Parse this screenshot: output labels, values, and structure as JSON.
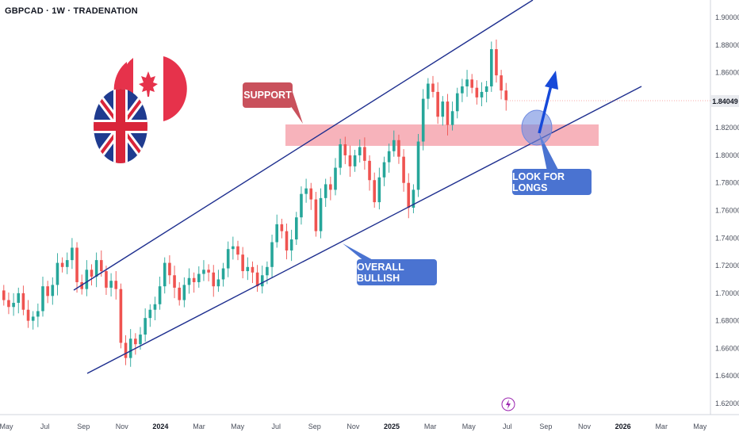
{
  "header": {
    "title": "GBPCAD · 1W · TRADENATION"
  },
  "annotations": {
    "support": "SUPPORT",
    "look_for_longs": "LOOK FOR LONGS",
    "overall_bullish": "OVERALL BULLISH"
  },
  "price_axis": {
    "ticks": [
      "1.90000",
      "1.88000",
      "1.86000",
      "1.84049",
      "1.82000",
      "1.80000",
      "1.78000",
      "1.76000",
      "1.74000",
      "1.72000",
      "1.70000",
      "1.68000",
      "1.66000",
      "1.64000",
      "1.62000"
    ],
    "current_price": "1.84049"
  },
  "time_axis": {
    "ticks": [
      "May",
      "Jul",
      "Sep",
      "Nov",
      "2024",
      "Mar",
      "May",
      "Jul",
      "Sep",
      "Nov",
      "2025",
      "Mar",
      "May",
      "Jul",
      "Sep",
      "Nov",
      "2026",
      "Mar",
      "May"
    ]
  },
  "colors": {
    "up": "#26a69a",
    "down": "#ef5350",
    "channel": "#1e2f8f",
    "support_zone": "#f28b96",
    "support_label": "#c9515c",
    "callout_blue": "#4a73d1",
    "arrow_blue": "#1649d9"
  },
  "icons": [
    "canada-flag-icon",
    "uk-flag-icon",
    "lightning-icon"
  ],
  "chart_data": {
    "type": "candlestick",
    "symbol": "GBPCAD",
    "interval": "1W",
    "x_range": [
      "2023-04",
      "2026-05"
    ],
    "ylim": [
      1.62,
      1.9
    ],
    "grid": false,
    "candles_close": [
      1.695,
      1.69,
      1.693,
      1.7,
      1.688,
      1.68,
      1.683,
      1.687,
      1.705,
      1.698,
      1.706,
      1.722,
      1.719,
      1.724,
      1.733,
      1.708,
      1.703,
      1.717,
      1.712,
      1.724,
      1.716,
      1.704,
      1.709,
      1.703,
      1.664,
      1.653,
      1.667,
      1.663,
      1.67,
      1.682,
      1.688,
      1.692,
      1.705,
      1.722,
      1.713,
      1.704,
      1.695,
      1.706,
      1.711,
      1.708,
      1.714,
      1.717,
      1.715,
      1.705,
      1.71,
      1.718,
      1.732,
      1.734,
      1.728,
      1.716,
      1.719,
      1.715,
      1.705,
      1.713,
      1.719,
      1.737,
      1.75,
      1.745,
      1.731,
      1.739,
      1.755,
      1.772,
      1.776,
      1.768,
      1.745,
      1.769,
      1.779,
      1.775,
      1.791,
      1.808,
      1.8,
      1.792,
      1.8,
      1.806,
      1.796,
      1.782,
      1.766,
      1.784,
      1.795,
      1.803,
      1.811,
      1.799,
      1.78,
      1.762,
      1.775,
      1.81,
      1.841,
      1.852,
      1.846,
      1.828,
      1.839,
      1.822,
      1.832,
      1.845,
      1.85,
      1.855,
      1.849,
      1.842,
      1.846,
      1.85,
      1.877,
      1.858,
      1.847,
      1.84
    ],
    "support_zone": [
      1.808,
      1.823
    ],
    "channel_upper": [
      {
        "x": "2023-09",
        "y": 1.703
      },
      {
        "x": "2025-08",
        "y": 1.91
      }
    ],
    "channel_lower": [
      {
        "x": "2023-09",
        "y": 1.643
      },
      {
        "x": "2025-12",
        "y": 1.855
      }
    ],
    "last_price": 1.84049
  }
}
